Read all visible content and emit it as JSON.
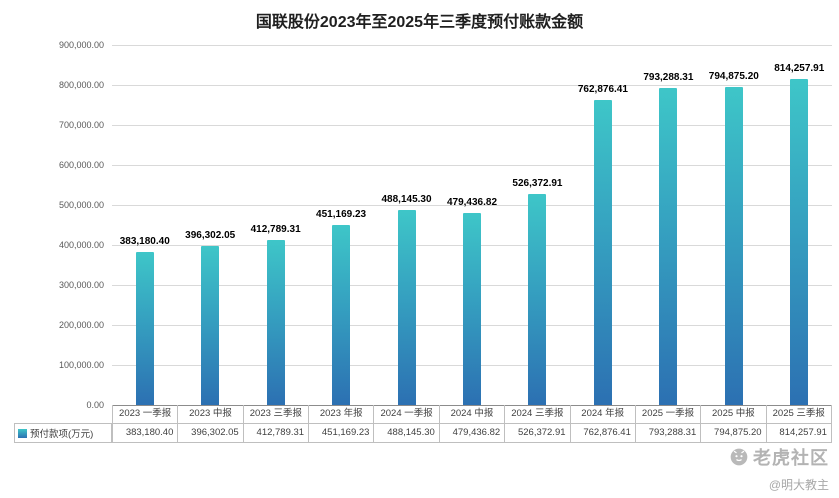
{
  "title": "国联股份2023年至2025年三季度预付账款金额",
  "chart_data": {
    "type": "bar",
    "title": "国联股份2023年至2025年三季度预付账款金额",
    "categories": [
      "2023 一季报",
      "2023 中报",
      "2023 三季报",
      "2023 年报",
      "2024 一季报",
      "2024 中报",
      "2024 三季报",
      "2024 年报",
      "2025 一季报",
      "2025 中报",
      "2025 三季报"
    ],
    "series": [
      {
        "name": "预付款项(万元)",
        "values": [
          383180.4,
          396302.05,
          412789.31,
          451169.23,
          488145.3,
          479436.82,
          526372.91,
          762876.41,
          793288.31,
          794875.2,
          814257.91
        ],
        "value_labels": [
          "383,180.40",
          "396,302.05",
          "412,789.31",
          "451,169.23",
          "488,145.30",
          "479,436.82",
          "526,372.91",
          "762,876.41",
          "793,288.31",
          "794,875.20",
          "814,257.91"
        ]
      }
    ],
    "xlabel": "",
    "ylabel": "",
    "ylim": [
      0,
      900000
    ],
    "ytick_step": 100000,
    "ytick_labels_top_to_bottom": [
      "900,000.00",
      "800,000.00",
      "700,000.00",
      "600,000.00",
      "500,000.00",
      "400,000.00",
      "300,000.00",
      "200,000.00",
      "100,000.00",
      "0.00"
    ],
    "grid": true,
    "legend_position": "bottom-table-left",
    "colors": {
      "bar_top": "#3ec6c8",
      "bar_bottom": "#2c70b2",
      "gridline": "#d9d9d9",
      "axis_text": "#595959",
      "data_label": "#000000",
      "table_border": "#bfbfbf",
      "watermark": "#b3b3b3"
    }
  },
  "watermark": {
    "community": "老虎社区",
    "author": "@明大教主"
  }
}
